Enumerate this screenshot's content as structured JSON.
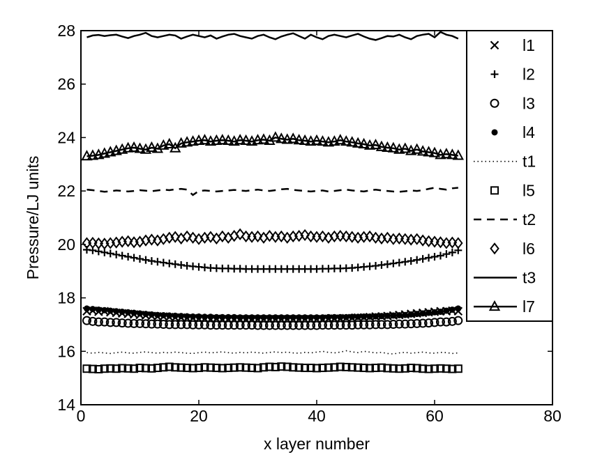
{
  "chart_data": {
    "type": "line",
    "title": "",
    "xlabel": "x layer number",
    "ylabel": "Pressure/LJ units",
    "xlim": [
      0,
      80
    ],
    "ylim": [
      14,
      28
    ],
    "xticks": [
      0,
      20,
      40,
      60,
      80
    ],
    "yticks": [
      14,
      16,
      18,
      20,
      22,
      24,
      26,
      28
    ],
    "grid": false,
    "legend_position": "top-right",
    "x": [
      1,
      2,
      3,
      4,
      5,
      6,
      7,
      8,
      9,
      10,
      11,
      12,
      13,
      14,
      15,
      16,
      17,
      18,
      19,
      20,
      21,
      22,
      23,
      24,
      25,
      26,
      27,
      28,
      29,
      30,
      31,
      32,
      33,
      34,
      35,
      36,
      37,
      38,
      39,
      40,
      41,
      42,
      43,
      44,
      45,
      46,
      47,
      48,
      49,
      50,
      51,
      52,
      53,
      54,
      55,
      56,
      57,
      58,
      59,
      60,
      61,
      62,
      63,
      64
    ],
    "series": [
      {
        "name": "l1",
        "marker": "x",
        "line": "none",
        "values": [
          17.5,
          17.52,
          17.48,
          17.5,
          17.46,
          17.44,
          17.42,
          17.4,
          17.38,
          17.36,
          17.34,
          17.32,
          17.3,
          17.3,
          17.28,
          17.26,
          17.26,
          17.24,
          17.24,
          17.22,
          17.22,
          17.2,
          17.22,
          17.2,
          17.2,
          17.2,
          17.2,
          17.2,
          17.2,
          17.2,
          17.2,
          17.2,
          17.2,
          17.2,
          17.2,
          17.2,
          17.2,
          17.2,
          17.2,
          17.2,
          17.2,
          17.22,
          17.22,
          17.22,
          17.24,
          17.24,
          17.26,
          17.26,
          17.28,
          17.3,
          17.3,
          17.32,
          17.34,
          17.36,
          17.38,
          17.4,
          17.42,
          17.44,
          17.46,
          17.48,
          17.5,
          17.5,
          17.52,
          17.5
        ]
      },
      {
        "name": "l2",
        "marker": "+",
        "line": "none",
        "values": [
          19.8,
          19.78,
          19.74,
          19.7,
          19.66,
          19.62,
          19.58,
          19.54,
          19.5,
          19.46,
          19.42,
          19.38,
          19.35,
          19.32,
          19.29,
          19.26,
          19.23,
          19.2,
          19.18,
          19.16,
          19.14,
          19.12,
          19.11,
          19.1,
          19.1,
          19.09,
          19.09,
          19.08,
          19.08,
          19.08,
          19.08,
          19.08,
          19.08,
          19.08,
          19.08,
          19.08,
          19.08,
          19.08,
          19.08,
          19.08,
          19.09,
          19.09,
          19.1,
          19.1,
          19.11,
          19.12,
          19.14,
          19.16,
          19.18,
          19.2,
          19.23,
          19.26,
          19.29,
          19.32,
          19.35,
          19.38,
          19.42,
          19.46,
          19.5,
          19.54,
          19.58,
          19.64,
          19.7,
          19.78
        ]
      },
      {
        "name": "l3",
        "marker": "o",
        "line": "none",
        "values": [
          17.15,
          17.12,
          17.1,
          17.1,
          17.08,
          17.08,
          17.06,
          17.05,
          17.04,
          17.04,
          17.03,
          17.02,
          17.02,
          17.01,
          17.0,
          17.0,
          17.0,
          17.0,
          16.99,
          16.99,
          16.99,
          16.98,
          16.98,
          16.98,
          16.98,
          16.98,
          16.98,
          16.98,
          16.98,
          16.97,
          16.97,
          16.97,
          16.97,
          16.97,
          16.97,
          16.97,
          16.97,
          16.97,
          16.97,
          16.97,
          16.98,
          16.98,
          16.98,
          16.98,
          16.98,
          16.98,
          16.99,
          16.99,
          16.99,
          17.0,
          17.0,
          17.0,
          17.01,
          17.02,
          17.02,
          17.03,
          17.04,
          17.05,
          17.06,
          17.08,
          17.1,
          17.1,
          17.12,
          17.15
        ]
      },
      {
        "name": "l4",
        "marker": "dot",
        "line": "none",
        "values": [
          17.6,
          17.58,
          17.56,
          17.54,
          17.52,
          17.5,
          17.48,
          17.46,
          17.44,
          17.42,
          17.4,
          17.38,
          17.36,
          17.35,
          17.34,
          17.33,
          17.32,
          17.31,
          17.3,
          17.3,
          17.29,
          17.29,
          17.28,
          17.28,
          17.28,
          17.28,
          17.27,
          17.27,
          17.27,
          17.27,
          17.27,
          17.27,
          17.27,
          17.27,
          17.27,
          17.27,
          17.27,
          17.27,
          17.27,
          17.27,
          17.27,
          17.28,
          17.28,
          17.28,
          17.28,
          17.29,
          17.29,
          17.3,
          17.3,
          17.31,
          17.32,
          17.33,
          17.34,
          17.35,
          17.36,
          17.38,
          17.4,
          17.42,
          17.44,
          17.46,
          17.48,
          17.52,
          17.56,
          17.6
        ]
      },
      {
        "name": "t1",
        "marker": "none",
        "line": "dotted",
        "values": [
          15.95,
          15.93,
          15.96,
          15.94,
          15.92,
          15.95,
          15.97,
          15.94,
          15.93,
          15.96,
          15.98,
          15.95,
          15.93,
          15.96,
          15.94,
          15.97,
          15.95,
          15.93,
          15.92,
          15.95,
          15.97,
          15.94,
          15.96,
          15.98,
          15.95,
          15.93,
          15.96,
          15.94,
          15.97,
          15.95,
          15.93,
          15.96,
          15.98,
          15.95,
          15.97,
          15.94,
          15.93,
          15.96,
          15.94,
          15.97,
          16.0,
          15.96,
          15.94,
          15.97,
          16.02,
          15.98,
          15.95,
          16.0,
          15.97,
          15.94,
          15.96,
          15.92,
          15.9,
          15.94,
          15.96,
          15.93,
          15.95,
          15.97,
          15.94,
          15.93,
          15.96,
          15.95,
          15.92,
          15.94
        ]
      },
      {
        "name": "l5",
        "marker": "square",
        "line": "none",
        "values": [
          15.35,
          15.34,
          15.33,
          15.35,
          15.36,
          15.35,
          15.37,
          15.36,
          15.35,
          15.38,
          15.37,
          15.36,
          15.38,
          15.4,
          15.42,
          15.4,
          15.39,
          15.38,
          15.37,
          15.38,
          15.4,
          15.39,
          15.38,
          15.37,
          15.38,
          15.39,
          15.4,
          15.39,
          15.38,
          15.37,
          15.4,
          15.42,
          15.41,
          15.43,
          15.42,
          15.4,
          15.39,
          15.38,
          15.38,
          15.37,
          15.38,
          15.39,
          15.4,
          15.42,
          15.41,
          15.4,
          15.39,
          15.38,
          15.37,
          15.38,
          15.39,
          15.37,
          15.36,
          15.35,
          15.36,
          15.38,
          15.37,
          15.35,
          15.34,
          15.35,
          15.36,
          15.35,
          15.34,
          15.35
        ]
      },
      {
        "name": "t2",
        "marker": "none",
        "line": "dashed",
        "values": [
          22.05,
          22.03,
          22.0,
          21.97,
          21.99,
          22.02,
          22.0,
          21.98,
          22.0,
          22.03,
          22.01,
          21.99,
          22.02,
          22.05,
          22.03,
          22.06,
          22.08,
          22.05,
          21.85,
          22.0,
          22.02,
          22.0,
          21.98,
          22.0,
          22.02,
          22.04,
          22.02,
          22.0,
          22.03,
          22.05,
          22.02,
          22.0,
          22.03,
          22.06,
          22.08,
          22.04,
          22.02,
          22.0,
          21.98,
          22.0,
          22.02,
          21.98,
          22.0,
          22.03,
          22.05,
          22.02,
          22.0,
          21.98,
          22.02,
          22.05,
          22.02,
          22.0,
          21.98,
          21.97,
          21.99,
          22.02,
          22.0,
          22.03,
          22.08,
          22.12,
          22.08,
          22.05,
          22.1,
          22.12
        ]
      },
      {
        "name": "l6",
        "marker": "diamond",
        "line": "none",
        "values": [
          20.05,
          20.06,
          20.04,
          20.03,
          20.05,
          20.07,
          20.1,
          20.12,
          20.08,
          20.1,
          20.15,
          20.18,
          20.15,
          20.2,
          20.25,
          20.28,
          20.22,
          20.3,
          20.25,
          20.2,
          20.25,
          20.28,
          20.22,
          20.3,
          20.25,
          20.32,
          20.38,
          20.3,
          20.28,
          20.3,
          20.25,
          20.32,
          20.28,
          20.3,
          20.25,
          20.3,
          20.32,
          20.35,
          20.3,
          20.28,
          20.3,
          20.25,
          20.3,
          20.32,
          20.3,
          20.28,
          20.25,
          20.28,
          20.3,
          20.25,
          20.22,
          20.25,
          20.2,
          20.22,
          20.2,
          20.18,
          20.2,
          20.15,
          20.12,
          20.1,
          20.08,
          20.05,
          20.07,
          20.05
        ]
      },
      {
        "name": "t3",
        "marker": "none",
        "line": "solid",
        "values": [
          27.75,
          27.82,
          27.84,
          27.8,
          27.83,
          27.85,
          27.78,
          27.72,
          27.8,
          27.85,
          27.92,
          27.8,
          27.75,
          27.8,
          27.85,
          27.82,
          27.7,
          27.78,
          27.85,
          27.8,
          27.75,
          27.82,
          27.7,
          27.78,
          27.85,
          27.88,
          27.8,
          27.75,
          27.7,
          27.8,
          27.85,
          27.75,
          27.68,
          27.78,
          27.85,
          27.9,
          27.8,
          27.7,
          27.85,
          27.75,
          27.68,
          27.8,
          27.85,
          27.8,
          27.75,
          27.82,
          27.88,
          27.78,
          27.7,
          27.65,
          27.72,
          27.8,
          27.78,
          27.85,
          27.75,
          27.68,
          27.8,
          27.85,
          27.88,
          27.75,
          27.95,
          27.85,
          27.8,
          27.7
        ]
      },
      {
        "name": "l7",
        "marker": "triangle",
        "line": "solid",
        "values": [
          23.3,
          23.32,
          23.35,
          23.4,
          23.45,
          23.5,
          23.55,
          23.6,
          23.62,
          23.58,
          23.55,
          23.62,
          23.58,
          23.7,
          23.75,
          23.6,
          23.78,
          23.82,
          23.85,
          23.88,
          23.9,
          23.85,
          23.88,
          23.9,
          23.88,
          23.85,
          23.9,
          23.88,
          23.85,
          23.9,
          23.92,
          23.88,
          24.0,
          23.95,
          23.92,
          23.95,
          23.9,
          23.88,
          23.85,
          23.88,
          23.85,
          23.82,
          23.85,
          23.9,
          23.85,
          23.82,
          23.78,
          23.75,
          23.7,
          23.72,
          23.65,
          23.62,
          23.6,
          23.55,
          23.58,
          23.5,
          23.55,
          23.48,
          23.45,
          23.42,
          23.35,
          23.38,
          23.35,
          23.32
        ]
      }
    ]
  }
}
